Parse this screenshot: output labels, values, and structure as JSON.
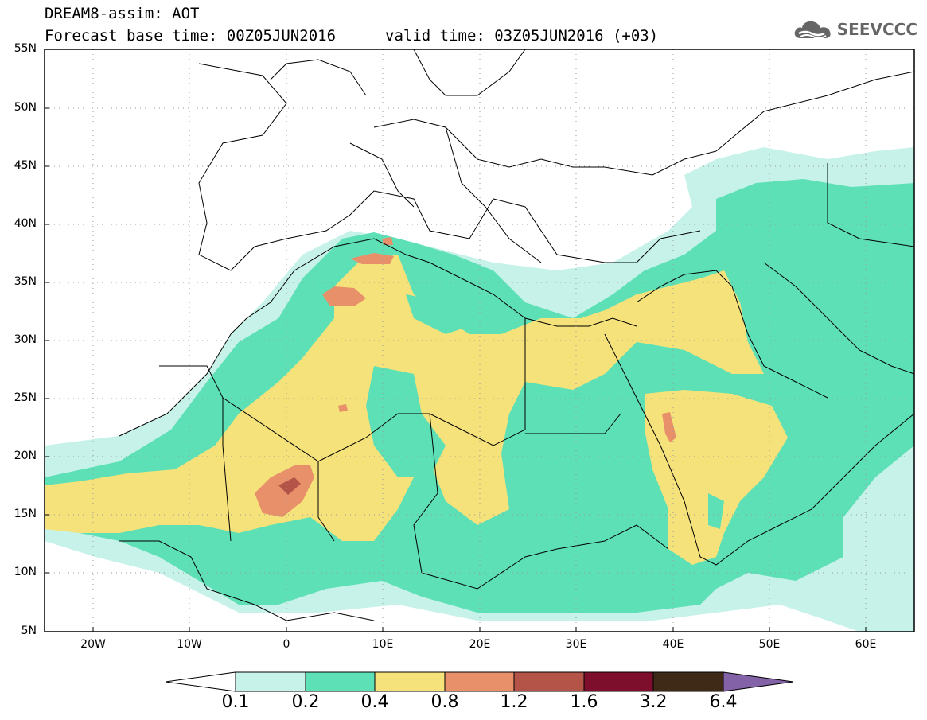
{
  "title": {
    "line1": "DREAM8-assim: AOT",
    "line2_base": "Forecast base time: 00Z05JUN2016",
    "line2_valid": "valid time: 03Z05JUN2016 (+03)"
  },
  "logo": {
    "text": "SEEVCCC",
    "icon": "cloud-icon",
    "color": "#666666"
  },
  "map": {
    "lat_labels": [
      "55N",
      "50N",
      "45N",
      "40N",
      "35N",
      "30N",
      "25N",
      "20N",
      "15N",
      "10N",
      "5N"
    ],
    "lat_values": [
      55,
      50,
      45,
      40,
      35,
      30,
      25,
      20,
      15,
      10,
      5
    ],
    "lon_labels": [
      "20W",
      "10W",
      "0",
      "10E",
      "20E",
      "30E",
      "40E",
      "50E",
      "60E"
    ],
    "lon_values": [
      -20,
      -10,
      0,
      10,
      20,
      30,
      40,
      50,
      60
    ],
    "lon_range": [
      -25,
      65
    ],
    "lat_range": [
      5,
      55
    ]
  },
  "colorbar": {
    "labels": [
      "0.1",
      "0.2",
      "0.4",
      "0.8",
      "1.2",
      "1.6",
      "3.2",
      "6.4"
    ],
    "colors": [
      "#ffffff",
      "#c6f2e9",
      "#5ee0b7",
      "#f5e27a",
      "#e8906a",
      "#b45347",
      "#7d0f2c",
      "#3f2a17",
      "#8462a8"
    ]
  },
  "legend_colors": {
    "c01": "#c6f2e9",
    "c02": "#5ee0b7",
    "c04": "#f5e27a",
    "c08": "#e8906a",
    "c12": "#b45347"
  }
}
